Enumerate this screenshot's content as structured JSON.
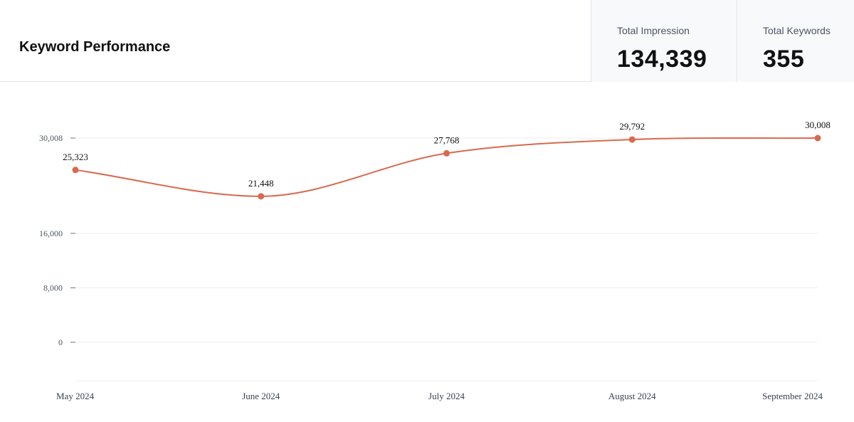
{
  "header": {
    "title": "Keyword Performance",
    "stats": [
      {
        "label": "Total Impression",
        "value": "134,339"
      },
      {
        "label": "Total Keywords",
        "value": "355"
      }
    ]
  },
  "chart_data": {
    "type": "line",
    "categories": [
      "May 2024",
      "June 2024",
      "July 2024",
      "August 2024",
      "September 2024"
    ],
    "values": [
      25323,
      21448,
      27768,
      29792,
      30008
    ],
    "data_labels": [
      "25,323",
      "21,448",
      "27,768",
      "29,792",
      "30,008"
    ],
    "ytick_labels": [
      "30,008",
      "16,000",
      "8,000",
      "0"
    ],
    "ytick_values": [
      30008,
      16000,
      8000,
      0
    ],
    "ylim": [
      0,
      30008
    ],
    "grid": true,
    "line_color": "#d9694f",
    "grid_color": "#eceef2"
  }
}
